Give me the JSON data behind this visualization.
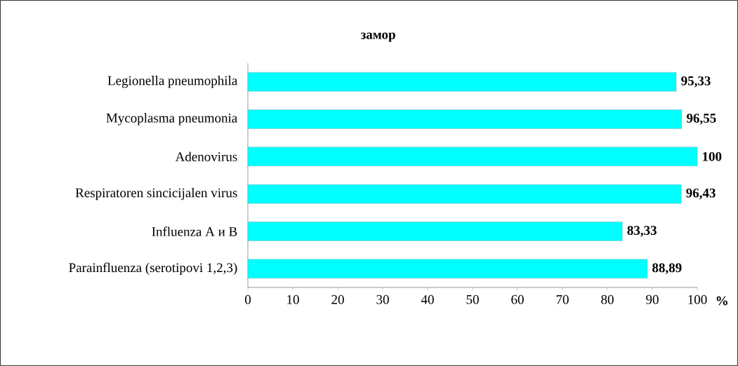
{
  "chart_data": {
    "type": "bar",
    "orientation": "horizontal",
    "title": "замор",
    "xlabel": "%",
    "categories": [
      "Legionella pneumophila",
      "Mycoplasma pneumonia",
      "Adenovirus",
      "Respiratoren sincicijalen virus",
      "Influenza A и B",
      "Parainfluenza (serotipovi 1,2,3)"
    ],
    "values": [
      95.33,
      96.55,
      100,
      96.43,
      83.33,
      88.89
    ],
    "value_labels": [
      "95,33",
      "96,55",
      "100",
      "96,43",
      "83,33",
      "88,89"
    ],
    "color": "#00ffff",
    "xlim": [
      0,
      100
    ],
    "xticks": [
      0,
      10,
      20,
      30,
      40,
      50,
      60,
      70,
      80,
      90,
      100
    ]
  }
}
